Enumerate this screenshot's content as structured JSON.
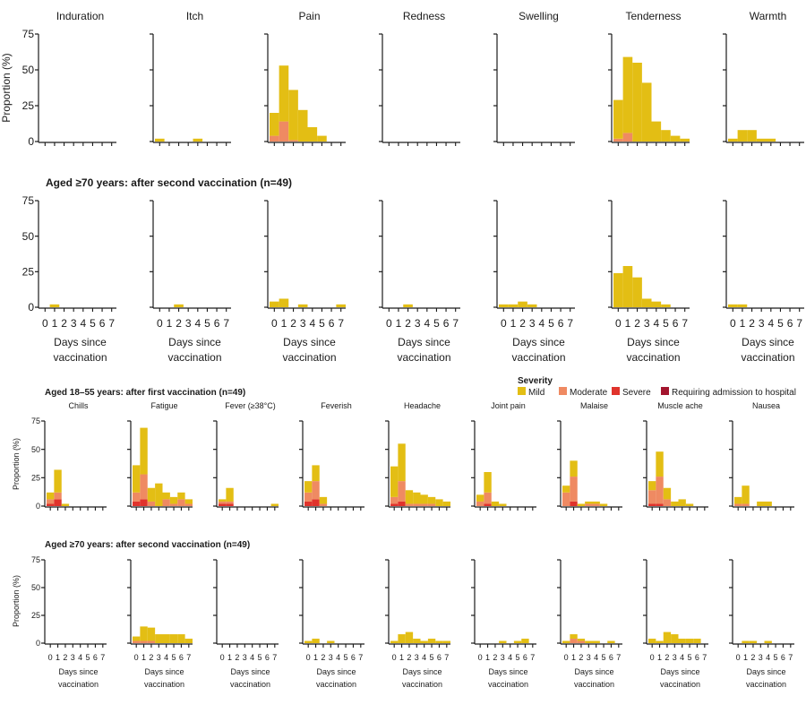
{
  "colors": {
    "mild": "#e3be14",
    "moderate": "#ef8a62",
    "severe": "#e0332c",
    "hospital": "#a3152e"
  },
  "severity_legend": {
    "title": "Severity",
    "items": [
      {
        "key": "mild",
        "label": "Mild"
      },
      {
        "key": "moderate",
        "label": "Moderate"
      },
      {
        "key": "severe",
        "label": "Severe"
      },
      {
        "key": "hospital",
        "label": "Requiring admission to hospital"
      }
    ]
  },
  "common": {
    "ylabel": "Proportion (%)",
    "xlabel_line1": "Days since",
    "xlabel_line2": "vaccination",
    "days": [
      "0",
      "1",
      "2",
      "3",
      "4",
      "5",
      "6",
      "7"
    ],
    "yticks": [
      "0",
      "25",
      "50",
      "75"
    ]
  },
  "chart_data": [
    {
      "type": "bar",
      "panel_group": "local-top",
      "heading": "",
      "stacked": true,
      "x": [
        0,
        1,
        2,
        3,
        4,
        5,
        6,
        7
      ],
      "ylim": [
        0,
        75
      ],
      "panels": [
        {
          "title": "Induration",
          "mild": [
            0,
            0,
            0,
            0,
            0,
            0,
            0,
            0
          ]
        },
        {
          "title": "Itch",
          "mild": [
            2,
            0,
            0,
            0,
            2,
            0,
            0,
            0
          ]
        },
        {
          "title": "Pain",
          "mild": [
            16,
            39,
            35,
            22,
            10,
            4,
            0,
            0
          ],
          "moderate": [
            4,
            14,
            1,
            0,
            0,
            0,
            0,
            0
          ]
        },
        {
          "title": "Redness",
          "mild": [
            0,
            0,
            0,
            0,
            0,
            0,
            0,
            0
          ]
        },
        {
          "title": "Swelling",
          "mild": [
            0,
            0,
            0,
            0,
            0,
            0,
            0,
            0
          ]
        },
        {
          "title": "Tenderness",
          "mild": [
            27,
            53,
            55,
            41,
            14,
            8,
            4,
            2
          ],
          "moderate": [
            2,
            6,
            0,
            0,
            0,
            0,
            0,
            0
          ]
        },
        {
          "title": "Warmth",
          "mild": [
            2,
            8,
            8,
            2,
            2,
            0,
            0,
            0
          ]
        }
      ]
    },
    {
      "type": "bar",
      "panel_group": "local-bottom",
      "heading": "Aged ≥70 years: after second vaccination (n=49)",
      "stacked": true,
      "x": [
        0,
        1,
        2,
        3,
        4,
        5,
        6,
        7
      ],
      "ylim": [
        0,
        75
      ],
      "panels": [
        {
          "title": "",
          "mild": [
            0,
            2,
            0,
            0,
            0,
            0,
            0,
            0
          ]
        },
        {
          "title": "",
          "mild": [
            0,
            0,
            2,
            0,
            0,
            0,
            0,
            0
          ]
        },
        {
          "title": "",
          "mild": [
            4,
            6,
            0,
            2,
            0,
            0,
            0,
            2
          ]
        },
        {
          "title": "",
          "mild": [
            0,
            0,
            2,
            0,
            0,
            0,
            0,
            0
          ]
        },
        {
          "title": "",
          "mild": [
            2,
            2,
            4,
            2,
            0,
            0,
            0,
            0
          ]
        },
        {
          "title": "",
          "mild": [
            24,
            29,
            21,
            6,
            4,
            2,
            0,
            0
          ]
        },
        {
          "title": "",
          "mild": [
            2,
            2,
            0,
            0,
            0,
            0,
            0,
            0
          ]
        }
      ]
    },
    {
      "type": "bar",
      "panel_group": "systemic-top",
      "heading": "Aged 18–55 years: after first vaccination (n=49)",
      "stacked": true,
      "x": [
        0,
        1,
        2,
        3,
        4,
        5,
        6,
        7
      ],
      "ylim": [
        0,
        75
      ],
      "panels": [
        {
          "title": "Chills",
          "mild": [
            6,
            20,
            2,
            0,
            0,
            0,
            0,
            0
          ],
          "moderate": [
            4,
            6,
            0,
            0,
            0,
            0,
            0,
            0
          ],
          "severe": [
            2,
            6,
            0,
            0,
            0,
            0,
            0,
            0
          ]
        },
        {
          "title": "Fatigue",
          "mild": [
            24,
            41,
            12,
            20,
            6,
            6,
            6,
            4
          ],
          "moderate": [
            8,
            22,
            4,
            0,
            6,
            2,
            6,
            2
          ],
          "severe": [
            4,
            6,
            0,
            0,
            0,
            0,
            0,
            0
          ]
        },
        {
          "title": "Fever (≥38°C)",
          "mild": [
            2,
            12,
            0,
            0,
            0,
            0,
            0,
            2
          ],
          "moderate": [
            2,
            2,
            0,
            0,
            0,
            0,
            0,
            0
          ],
          "severe": [
            2,
            2,
            0,
            0,
            0,
            0,
            0,
            0
          ]
        },
        {
          "title": "Feverish",
          "mild": [
            10,
            14,
            6,
            0,
            0,
            0,
            0,
            0
          ],
          "moderate": [
            8,
            16,
            2,
            0,
            0,
            0,
            0,
            0
          ],
          "severe": [
            4,
            6,
            0,
            0,
            0,
            0,
            0,
            0
          ]
        },
        {
          "title": "Headache",
          "mild": [
            27,
            33,
            12,
            10,
            8,
            6,
            6,
            4
          ],
          "moderate": [
            6,
            18,
            2,
            2,
            2,
            2,
            0,
            0
          ],
          "severe": [
            2,
            4,
            0,
            0,
            0,
            0,
            0,
            0
          ]
        },
        {
          "title": "Joint pain",
          "mild": [
            6,
            18,
            4,
            2,
            0,
            0,
            0,
            0
          ],
          "moderate": [
            4,
            10,
            0,
            0,
            0,
            0,
            0,
            0
          ],
          "severe": [
            0,
            2,
            0,
            0,
            0,
            0,
            0,
            0
          ]
        },
        {
          "title": "Malaise",
          "mild": [
            6,
            14,
            2,
            2,
            2,
            2,
            0,
            0
          ],
          "moderate": [
            12,
            22,
            0,
            2,
            2,
            0,
            0,
            0
          ],
          "severe": [
            0,
            4,
            0,
            0,
            0,
            0,
            0,
            0
          ]
        },
        {
          "title": "Muscle ache",
          "mild": [
            8,
            22,
            10,
            4,
            6,
            2,
            0,
            0
          ],
          "moderate": [
            12,
            24,
            6,
            0,
            0,
            0,
            0,
            0
          ],
          "severe": [
            2,
            2,
            0,
            0,
            0,
            0,
            0,
            0
          ]
        },
        {
          "title": "Nausea",
          "mild": [
            6,
            16,
            0,
            4,
            4,
            0,
            0,
            0
          ],
          "moderate": [
            2,
            2,
            0,
            0,
            0,
            0,
            0,
            0
          ]
        }
      ]
    },
    {
      "type": "bar",
      "panel_group": "systemic-bottom",
      "heading": "Aged ≥70 years: after second vaccination (n=49)",
      "stacked": true,
      "x": [
        0,
        1,
        2,
        3,
        4,
        5,
        6,
        7
      ],
      "ylim": [
        0,
        75
      ],
      "panels": [
        {
          "title": "",
          "mild": [
            0,
            0,
            0,
            0,
            0,
            0,
            0,
            0
          ]
        },
        {
          "title": "",
          "mild": [
            4,
            13,
            12,
            8,
            8,
            8,
            8,
            4
          ],
          "moderate": [
            2,
            2,
            2,
            0,
            0,
            0,
            0,
            0
          ]
        },
        {
          "title": "",
          "mild": [
            0,
            0,
            0,
            0,
            0,
            0,
            0,
            0
          ]
        },
        {
          "title": "",
          "mild": [
            2,
            4,
            0,
            2,
            0,
            0,
            0,
            0
          ]
        },
        {
          "title": "",
          "mild": [
            2,
            8,
            10,
            4,
            2,
            4,
            2,
            2
          ]
        },
        {
          "title": "",
          "mild": [
            0,
            0,
            0,
            2,
            0,
            2,
            4,
            0
          ]
        },
        {
          "title": "",
          "mild": [
            2,
            4,
            2,
            2,
            2,
            0,
            2,
            0
          ],
          "moderate": [
            0,
            4,
            2,
            0,
            0,
            0,
            0,
            0
          ]
        },
        {
          "title": "",
          "mild": [
            4,
            2,
            10,
            8,
            4,
            4,
            4,
            0
          ]
        },
        {
          "title": "",
          "mild": [
            0,
            2,
            2,
            0,
            2,
            0,
            0,
            0
          ]
        }
      ]
    }
  ]
}
